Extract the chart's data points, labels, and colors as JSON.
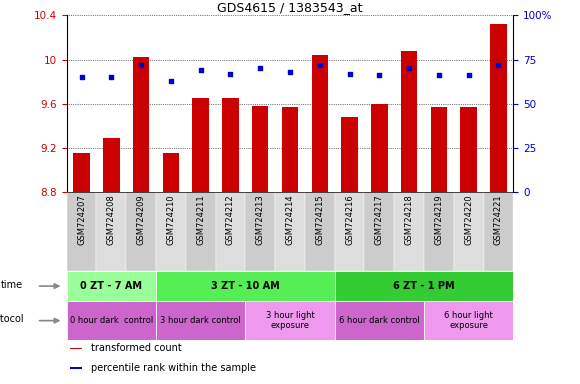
{
  "title": "GDS4615 / 1383543_at",
  "samples": [
    "GSM724207",
    "GSM724208",
    "GSM724209",
    "GSM724210",
    "GSM724211",
    "GSM724212",
    "GSM724213",
    "GSM724214",
    "GSM724215",
    "GSM724216",
    "GSM724217",
    "GSM724218",
    "GSM724219",
    "GSM724220",
    "GSM724221"
  ],
  "transformed_count": [
    9.15,
    9.29,
    10.02,
    9.15,
    9.65,
    9.65,
    9.58,
    9.57,
    10.04,
    9.48,
    9.6,
    10.08,
    9.57,
    9.57,
    10.32
  ],
  "percentile_rank": [
    65,
    65,
    72,
    63,
    69,
    67,
    70,
    68,
    72,
    67,
    66,
    70,
    66,
    66,
    72
  ],
  "ylim_left": [
    8.8,
    10.4
  ],
  "ylim_right": [
    0,
    100
  ],
  "yticks_left": [
    8.8,
    9.2,
    9.6,
    10.0,
    10.4
  ],
  "yticks_right": [
    0,
    25,
    50,
    75,
    100
  ],
  "ytick_labels_left": [
    "8.8",
    "9.2",
    "9.6",
    "10",
    "10.4"
  ],
  "ytick_labels_right": [
    "0",
    "25",
    "50",
    "75",
    "100%"
  ],
  "bar_color": "#cc0000",
  "dot_color": "#0000cc",
  "time_groups": [
    {
      "label": "0 ZT - 7 AM",
      "start": 0,
      "end": 2,
      "color": "#99ff99"
    },
    {
      "label": "3 ZT - 10 AM",
      "start": 3,
      "end": 8,
      "color": "#55ee55"
    },
    {
      "label": "6 ZT - 1 PM",
      "start": 9,
      "end": 14,
      "color": "#33cc33"
    }
  ],
  "protocol_groups": [
    {
      "label": "0 hour dark  control",
      "start": 0,
      "end": 2,
      "color": "#cc66cc"
    },
    {
      "label": "3 hour dark control",
      "start": 3,
      "end": 5,
      "color": "#cc66cc"
    },
    {
      "label": "3 hour light\nexposure",
      "start": 6,
      "end": 8,
      "color": "#ee99ee"
    },
    {
      "label": "6 hour dark control",
      "start": 9,
      "end": 11,
      "color": "#cc66cc"
    },
    {
      "label": "6 hour light\nexposure",
      "start": 12,
      "end": 14,
      "color": "#ee99ee"
    }
  ],
  "legend_items": [
    {
      "label": "transformed count",
      "color": "#cc0000"
    },
    {
      "label": "percentile rank within the sample",
      "color": "#0000cc"
    }
  ],
  "xtick_bg_colors": [
    "#cccccc",
    "#dddddd"
  ]
}
